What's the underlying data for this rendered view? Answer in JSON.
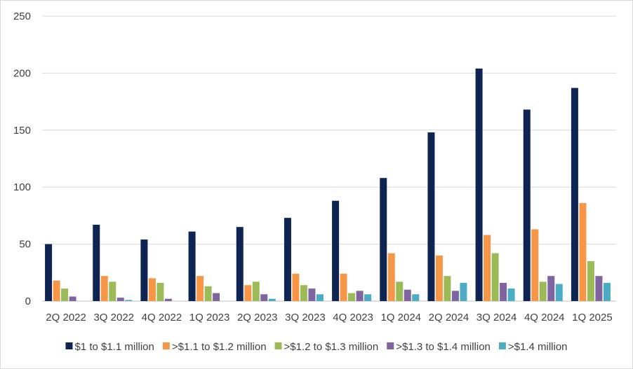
{
  "chart_data": {
    "type": "bar",
    "title": "",
    "xlabel": "",
    "ylabel": "",
    "ylim": [
      0,
      250
    ],
    "yticks": [
      0,
      50,
      100,
      150,
      200,
      250
    ],
    "grid": true,
    "legend_position": "bottom",
    "categories": [
      "2Q 2022",
      "3Q 2022",
      "4Q 2022",
      "1Q 2023",
      "2Q 2023",
      "3Q 2023",
      "4Q 2023",
      "1Q 2024",
      "2Q 2024",
      "3Q 2024",
      "4Q 2024",
      "1Q 2025"
    ],
    "series": [
      {
        "name": "$1 to $1.1 million",
        "color": "#0e2452",
        "values": [
          50,
          67,
          54,
          61,
          65,
          73,
          88,
          108,
          148,
          204,
          168,
          187
        ]
      },
      {
        "name": ">$1.1 to $1.2 million",
        "color": "#f79646",
        "values": [
          18,
          22,
          20,
          22,
          14,
          24,
          24,
          42,
          40,
          58,
          63,
          86
        ]
      },
      {
        "name": ">$1.2 to $1.3 million",
        "color": "#9bbb59",
        "values": [
          11,
          17,
          16,
          13,
          17,
          14,
          7,
          17,
          22,
          42,
          17,
          35
        ]
      },
      {
        "name": ">$1.3 to $1.4 million",
        "color": "#8064a2",
        "values": [
          4,
          3,
          2,
          7,
          6,
          11,
          9,
          10,
          9,
          16,
          22,
          22
        ]
      },
      {
        "name": ">$1.4 million",
        "color": "#4bacc6",
        "values": [
          0,
          1,
          0,
          0,
          2,
          6,
          6,
          6,
          16,
          11,
          15,
          16
        ]
      }
    ]
  }
}
